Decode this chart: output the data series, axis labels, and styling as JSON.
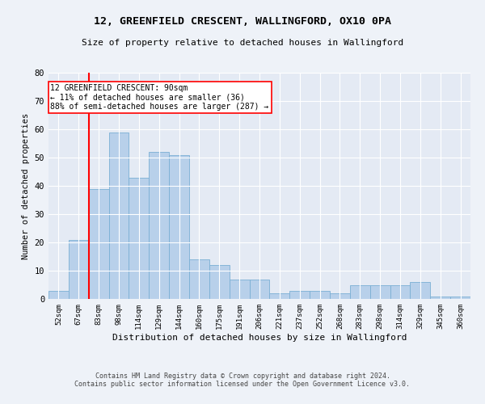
{
  "title1": "12, GREENFIELD CRESCENT, WALLINGFORD, OX10 0PA",
  "title2": "Size of property relative to detached houses in Wallingford",
  "xlabel": "Distribution of detached houses by size in Wallingford",
  "ylabel": "Number of detached properties",
  "categories": [
    "52sqm",
    "67sqm",
    "83sqm",
    "98sqm",
    "114sqm",
    "129sqm",
    "144sqm",
    "160sqm",
    "175sqm",
    "191sqm",
    "206sqm",
    "221sqm",
    "237sqm",
    "252sqm",
    "268sqm",
    "283sqm",
    "298sqm",
    "314sqm",
    "329sqm",
    "345sqm",
    "360sqm"
  ],
  "values": [
    3,
    21,
    39,
    59,
    43,
    52,
    51,
    14,
    12,
    7,
    7,
    2,
    3,
    3,
    2,
    5,
    5,
    5,
    6,
    1,
    1
  ],
  "bar_color": "#b8d0ea",
  "bar_edge_color": "#7aafd4",
  "red_line_x": 1.5,
  "annotation_line1": "12 GREENFIELD CRESCENT: 90sqm",
  "annotation_line2": "← 11% of detached houses are smaller (36)",
  "annotation_line3": "88% of semi-detached houses are larger (287) →",
  "ylim": [
    0,
    80
  ],
  "yticks": [
    0,
    10,
    20,
    30,
    40,
    50,
    60,
    70,
    80
  ],
  "footnote1": "Contains HM Land Registry data © Crown copyright and database right 2024.",
  "footnote2": "Contains public sector information licensed under the Open Government Licence v3.0.",
  "bg_color": "#eef2f8",
  "plot_bg_color": "#e4eaf4"
}
